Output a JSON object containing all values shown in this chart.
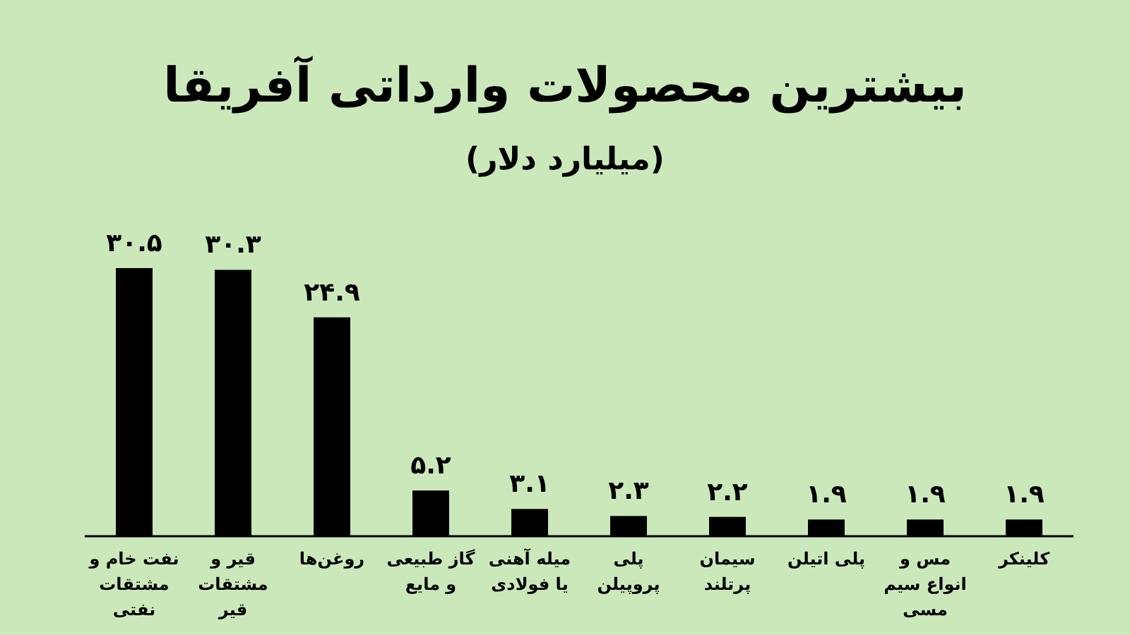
{
  "chart_data": {
    "type": "bar",
    "title": "بیشترین محصولات وارداتی آفریقا",
    "subtitle": "(میلیارد دلار)",
    "categories": [
      "نفت خام و مشتقات نفتی",
      "قیر و مشتقات قیر",
      "روغن‌ها",
      "گاز طبیعی و مایع",
      "میله آهنی یا فولادی",
      "پلی پروپیلن",
      "سیمان پرتلند",
      "پلی اتیلن",
      "مس و انواع سیم مسی",
      "کلینکر"
    ],
    "values": [
      30.5,
      30.3,
      24.9,
      5.2,
      3.1,
      2.3,
      2.2,
      1.9,
      1.9,
      1.9
    ],
    "value_labels": [
      "۳۰.۵",
      "۳۰.۳",
      "۲۴.۹",
      "۵.۲",
      "۳.۱",
      "۲.۳",
      "۲.۲",
      "۱.۹",
      "۱.۹",
      "۱.۹"
    ],
    "color": "#000000"
  }
}
